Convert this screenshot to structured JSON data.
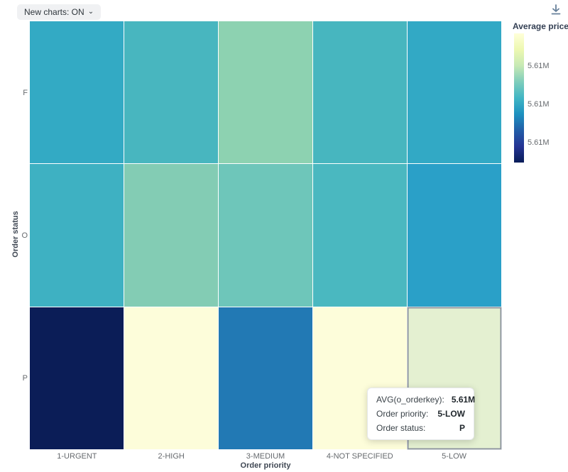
{
  "controls": {
    "new_charts_label": "New charts: ON",
    "chevron_glyph": "⌄"
  },
  "chart_data": {
    "type": "heatmap",
    "x": {
      "label": "Order priority",
      "categories": [
        "1-URGENT",
        "2-HIGH",
        "3-MEDIUM",
        "4-NOT SPECIFIED",
        "5-LOW"
      ]
    },
    "y": {
      "label": "Order status",
      "categories": [
        "F",
        "O",
        "P"
      ]
    },
    "metric": "Average price",
    "cell_colors": [
      [
        "#33aac4",
        "#48b6bf",
        "#8dd2b1",
        "#47b6bf",
        "#32a9c5"
      ],
      [
        "#3eb1c2",
        "#83ccb4",
        "#6ec6ba",
        "#4ab8c0",
        "#2aa0c8"
      ],
      [
        "#0b1d57",
        "#fdfdda",
        "#2279b4",
        "#fdfdda",
        "#e4f0d1"
      ]
    ],
    "highlight": {
      "row_index": 2,
      "col_index": 4,
      "x": "5-LOW",
      "y": "P",
      "value": "5.61M"
    },
    "legend_position": "right",
    "grid": "off"
  },
  "legend": {
    "title": "Average price",
    "tick_labels": [
      "5.61M",
      "5.61M",
      "5.61M"
    ],
    "gradient_stops": [
      "#ffffd9",
      "#edf8b1",
      "#c7e9b4",
      "#7fcdbb",
      "#41b6c4",
      "#1d91c0",
      "#225ea8",
      "#253494",
      "#081d58"
    ]
  },
  "tooltip": {
    "rows": [
      {
        "label": "AVG(o_orderkey):",
        "value": "5.61M"
      },
      {
        "label": "Order priority:",
        "value": "5-LOW"
      },
      {
        "label": "Order status:",
        "value": "P"
      }
    ]
  },
  "icon_colors": {
    "download": "#66809a"
  }
}
